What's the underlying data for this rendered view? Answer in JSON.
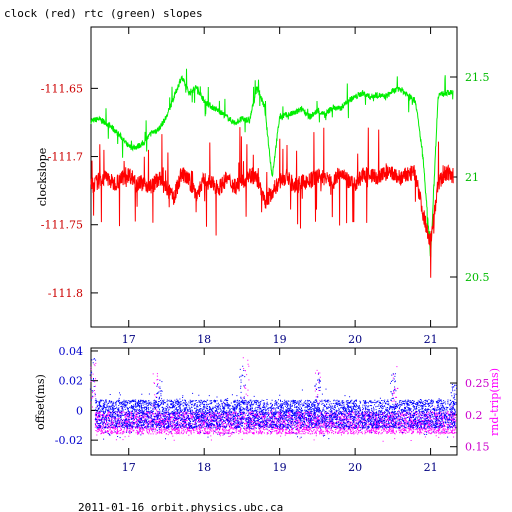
{
  "title": "clock (red) rtc (green) slopes",
  "footer": "2011-01-16 orbit.physics.ubc.ca",
  "colors": {
    "clock": "#ff0000",
    "rtc": "#00ee00",
    "offset": "#0000ff",
    "rndtrip": "#ff00ff",
    "axis": "#000000"
  },
  "chart_data": [
    {
      "type": "line",
      "title": "clock (red) rtc (green) slopes",
      "xlabel": "",
      "ylabel": "clockslope",
      "y2label": "",
      "xlim": [
        16.5,
        21.35
      ],
      "ylim": [
        -111.825,
        -111.605
      ],
      "y2lim": [
        20.25,
        21.75
      ],
      "xticks": [
        "17",
        "18",
        "19",
        "20",
        "21"
      ],
      "yticks": [
        "-111.65",
        "-111.7",
        "-111.75",
        "-111.8"
      ],
      "y2ticks": [
        "21.5",
        "21",
        "20.5"
      ],
      "series": [
        {
          "name": "clock",
          "axis": "left",
          "x": [
            16.5,
            16.6,
            16.7,
            16.8,
            16.9,
            17.0,
            17.1,
            17.2,
            17.3,
            17.4,
            17.5,
            17.6,
            17.7,
            17.8,
            17.9,
            18.0,
            18.1,
            18.2,
            18.3,
            18.4,
            18.5,
            18.6,
            18.7,
            18.8,
            18.9,
            19.0,
            19.1,
            19.2,
            19.3,
            19.4,
            19.5,
            19.6,
            19.7,
            19.8,
            19.9,
            20.0,
            20.1,
            20.2,
            20.3,
            20.4,
            20.5,
            20.6,
            20.7,
            20.8,
            20.9,
            21.0,
            21.1,
            21.2,
            21.3
          ],
          "y": [
            -111.722,
            -111.718,
            -111.715,
            -111.72,
            -111.716,
            -111.713,
            -111.718,
            -111.72,
            -111.722,
            -111.716,
            -111.724,
            -111.73,
            -111.712,
            -111.718,
            -111.728,
            -111.717,
            -111.72,
            -111.723,
            -111.716,
            -111.722,
            -111.719,
            -111.713,
            -111.716,
            -111.734,
            -111.726,
            -111.718,
            -111.715,
            -111.722,
            -111.719,
            -111.718,
            -111.714,
            -111.716,
            -111.719,
            -111.712,
            -111.718,
            -111.72,
            -111.714,
            -111.713,
            -111.716,
            -111.712,
            -111.713,
            -111.716,
            -111.713,
            -111.712,
            -111.742,
            -111.763,
            -111.72,
            -111.712,
            -111.714
          ]
        },
        {
          "name": "rtc",
          "axis": "right",
          "x": [
            16.5,
            16.6,
            16.7,
            16.8,
            16.9,
            17.0,
            17.1,
            17.2,
            17.3,
            17.4,
            17.5,
            17.6,
            17.7,
            17.8,
            17.9,
            18.0,
            18.1,
            18.2,
            18.3,
            18.4,
            18.5,
            18.6,
            18.7,
            18.8,
            18.9,
            19.0,
            19.1,
            19.2,
            19.3,
            19.4,
            19.5,
            19.6,
            19.7,
            19.8,
            19.9,
            20.0,
            20.1,
            20.2,
            20.3,
            20.4,
            20.5,
            20.6,
            20.7,
            20.8,
            20.9,
            21.0,
            21.1,
            21.2,
            21.3
          ],
          "y": [
            21.28,
            21.29,
            21.27,
            21.24,
            21.2,
            21.15,
            21.15,
            21.17,
            21.22,
            21.24,
            21.3,
            21.4,
            21.5,
            21.42,
            21.45,
            21.38,
            21.35,
            21.33,
            21.3,
            21.27,
            21.29,
            21.28,
            21.45,
            21.35,
            21.0,
            21.3,
            21.31,
            21.32,
            21.34,
            21.3,
            21.33,
            21.31,
            21.35,
            21.34,
            21.38,
            21.4,
            21.42,
            21.4,
            21.41,
            21.4,
            21.43,
            21.44,
            21.41,
            21.38,
            21.1,
            20.6,
            21.41,
            21.42,
            21.42
          ]
        }
      ]
    },
    {
      "type": "scatter",
      "ylabel": "offset(ms)",
      "y2label": "rnd-trip(ms)",
      "xlim": [
        16.5,
        21.35
      ],
      "ylim": [
        -0.03,
        0.042
      ],
      "y2lim": [
        0.137,
        0.305
      ],
      "xticks": [
        "17",
        "18",
        "19",
        "20",
        "21"
      ],
      "yticks": [
        "0.04",
        "0.02",
        "0",
        "-0.02"
      ],
      "y2ticks": [
        "0.25",
        "0.2",
        "0.15"
      ],
      "series": [
        {
          "name": "offset",
          "axis": "left",
          "band": [
            -0.012,
            0.007
          ],
          "spikes_x": [
            16.52,
            17.4,
            18.5,
            19.5,
            20.5,
            21.3
          ],
          "spikes_y": [
            0.035,
            0.022,
            0.03,
            0.025,
            0.026,
            0.018
          ]
        },
        {
          "name": "rnd-trip",
          "axis": "right",
          "band": [
            0.17,
            0.205
          ],
          "spikes_x": [
            16.52,
            17.35,
            18.55,
            19.5,
            20.52
          ],
          "spikes_y": [
            0.285,
            0.27,
            0.29,
            0.27,
            0.28
          ]
        }
      ]
    }
  ]
}
